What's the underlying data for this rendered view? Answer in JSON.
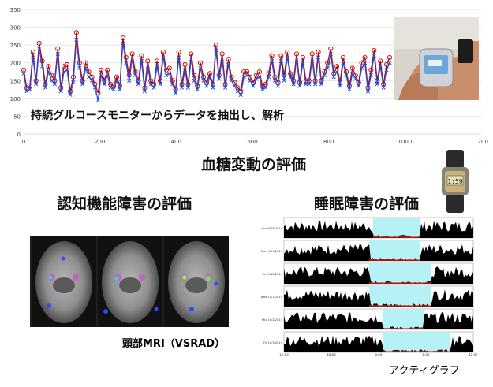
{
  "glucose_chart": {
    "chart_data": {
      "type": "line",
      "y_ticks": [
        "0",
        "50",
        "100",
        "150",
        "200",
        "250",
        "300",
        "350"
      ],
      "x_ticks": [
        "0",
        "200",
        "400",
        "600",
        "800",
        "1000",
        "1200"
      ],
      "xlim": [
        0,
        1200
      ],
      "ylim": [
        0,
        350
      ],
      "grid": true,
      "legend": "none",
      "series": [
        {
          "color": "#c00000",
          "values": [
            180,
            130,
            135,
            230,
            150,
            255,
            205,
            140,
            190,
            165,
            150,
            240,
            130,
            190,
            195,
            120,
            160,
            285,
            200,
            150,
            200,
            175,
            160,
            140,
            115,
            180,
            150,
            180,
            140,
            135,
            160,
            135,
            270,
            215,
            165,
            225,
            175,
            150,
            220,
            130,
            205,
            150,
            140,
            205,
            150,
            230,
            180,
            185,
            150,
            125,
            230,
            140,
            195,
            140,
            225,
            165,
            135,
            200,
            160,
            145,
            170,
            140,
            250,
            165,
            225,
            140,
            210,
            160,
            145,
            130,
            120,
            175,
            175,
            160,
            145,
            165,
            175,
            135,
            140,
            170,
            220,
            160,
            145,
            220,
            165,
            230,
            170,
            150,
            225,
            145,
            215,
            150,
            150,
            225,
            150,
            230,
            150,
            175,
            200,
            240,
            170,
            190,
            145,
            215,
            175,
            135,
            185,
            165,
            145,
            200,
            215,
            130,
            180,
            235,
            150,
            205,
            140,
            195,
            215
          ]
        },
        {
          "color": "#1f4fd8",
          "values": [
            170,
            120,
            125,
            215,
            140,
            240,
            190,
            130,
            175,
            150,
            140,
            225,
            120,
            175,
            180,
            110,
            145,
            265,
            185,
            140,
            185,
            160,
            150,
            130,
            95,
            165,
            140,
            165,
            130,
            125,
            150,
            125,
            255,
            200,
            150,
            210,
            165,
            140,
            205,
            120,
            190,
            140,
            130,
            190,
            140,
            215,
            165,
            170,
            140,
            115,
            215,
            130,
            180,
            130,
            210,
            150,
            125,
            185,
            150,
            135,
            160,
            130,
            235,
            155,
            210,
            130,
            195,
            150,
            135,
            120,
            110,
            160,
            165,
            150,
            135,
            155,
            160,
            125,
            130,
            160,
            205,
            150,
            135,
            205,
            150,
            215,
            160,
            140,
            210,
            135,
            200,
            140,
            140,
            210,
            140,
            215,
            140,
            165,
            185,
            225,
            160,
            175,
            135,
            200,
            165,
            125,
            170,
            155,
            135,
            185,
            200,
            120,
            165,
            220,
            140,
            190,
            130,
            180,
            200
          ]
        }
      ]
    },
    "caption": "持続グルコースモニターからデータを抽出し、解析"
  },
  "headings": {
    "glucose": "血糖変動の評価",
    "cognitive": "認知機能障害の評価",
    "sleep": "睡眠障害の評価"
  },
  "mri": {
    "caption": "頭部MRI（VSRAD）"
  },
  "actigraph": {
    "caption": "アクティグラフ",
    "chart_data": {
      "type": "area",
      "days": [
        "Sun 9/28/2014",
        "Mon 9/29/2014",
        "Tue 9/30/2014",
        "Wed 10/1/2014",
        "Thu 10/2/2014",
        "Fri 10/3/2014"
      ],
      "x_ticks": [
        "12:00",
        "18:00",
        "0:00",
        "6:00",
        "12:00"
      ],
      "series_colors": {
        "activity": "#000000",
        "sleep": "#b6f1f5",
        "off_wrist": "#ff33cc"
      }
    }
  },
  "colors": {
    "glucose_red": "#c00000",
    "glucose_blue": "#1f4fd8"
  }
}
